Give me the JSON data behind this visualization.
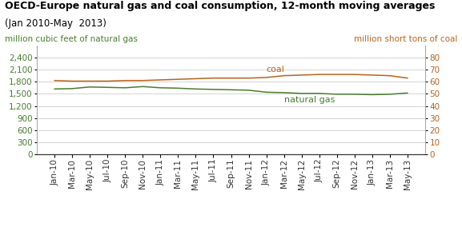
{
  "title_line1": "OECD-Europe natural gas and coal consumption, 12-month moving averages",
  "title_line2": "(Jan 2010-May  2013)",
  "ylabel_left": "million cubic feet of natural gas",
  "ylabel_right": "million short tons of coal",
  "label_coal": "coal",
  "label_gas": "natural gas",
  "color_coal": "#b5651d",
  "color_gas": "#4a7c2f",
  "color_title": "#000000",
  "color_ylabel_left": "#4a7c2f",
  "color_ylabel_right": "#b5651d",
  "ylim_left": [
    0,
    2700
  ],
  "ylim_right": [
    0,
    90
  ],
  "yticks_left": [
    0,
    300,
    600,
    900,
    1200,
    1500,
    1800,
    2100,
    2400
  ],
  "yticks_right": [
    0,
    10,
    20,
    30,
    40,
    50,
    60,
    70,
    80
  ],
  "x_labels": [
    "Jan-10",
    "Mar-10",
    "May-10",
    "Jul-10",
    "Sep-10",
    "Nov-10",
    "Jan-11",
    "Mar-11",
    "May-11",
    "Jul-11",
    "Sep-11",
    "Nov-11",
    "Jan-12",
    "Mar-12",
    "May-12",
    "Jul-12",
    "Sep-12",
    "Nov-12",
    "Jan-13",
    "Mar-13",
    "May-13"
  ],
  "natural_gas": [
    1620,
    1630,
    1670,
    1660,
    1650,
    1680,
    1650,
    1640,
    1620,
    1610,
    1600,
    1590,
    1540,
    1530,
    1510,
    1510,
    1490,
    1490,
    1480,
    1490,
    1520
  ],
  "coal": [
    61,
    60.5,
    60.5,
    60.5,
    61,
    61,
    61.5,
    62,
    62.5,
    63,
    63,
    63,
    63.5,
    65,
    65.5,
    66,
    66,
    66,
    65.5,
    65,
    63
  ],
  "background_color": "#ffffff",
  "grid_color": "#cccccc",
  "title_fontsize": 9.0,
  "subtitle_fontsize": 8.5,
  "axis_label_fontsize": 7.5,
  "tick_fontsize": 7.5,
  "annot_fontsize": 8.0
}
